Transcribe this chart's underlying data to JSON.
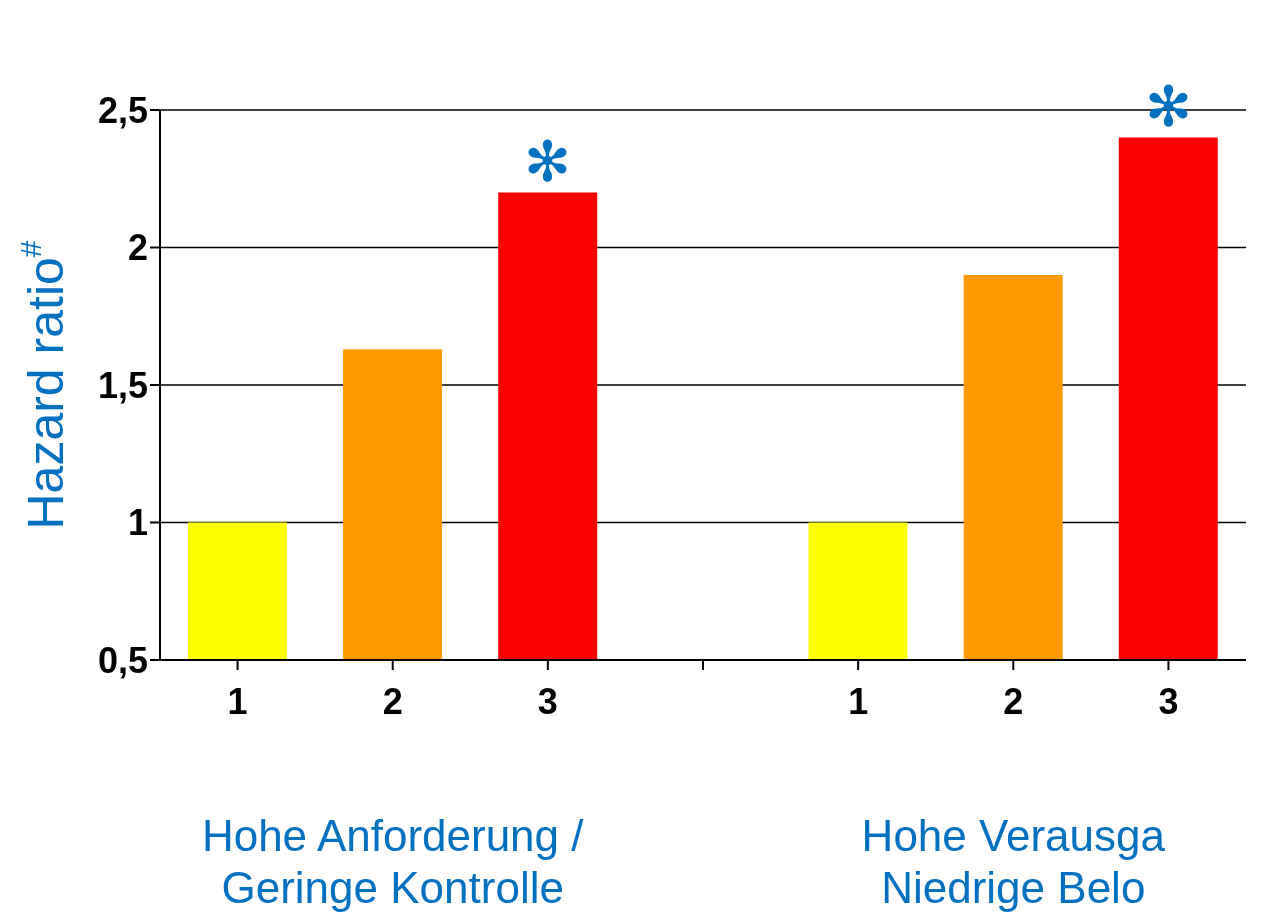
{
  "chart_data": {
    "type": "bar",
    "ylabel": "Hazard ratio$^{#}$",
    "categories": [
      "1",
      "2",
      "3",
      null,
      "1",
      "2",
      "3"
    ],
    "values": [
      1.0,
      1.63,
      2.2,
      null,
      1.0,
      1.9,
      2.4
    ],
    "colors": [
      "#ffff00",
      "#ff9900",
      "#ff0000",
      "#808080",
      "#ffff00",
      "#ff9900",
      "#ff0000"
    ],
    "value_labels": [
      null,
      null,
      "✻",
      null,
      null,
      null,
      "✻"
    ],
    "ylim": [
      0.5,
      2.5
    ],
    "yticks": [
      {
        "value": 0.5,
        "label": "0,5"
      },
      {
        "value": 1,
        "label": "1"
      },
      {
        "value": 1.5,
        "label": "1,5"
      },
      {
        "value": 2,
        "label": "2"
      },
      {
        "value": 2.5,
        "label": "2,5"
      }
    ],
    "grid": "y",
    "annotations": [
      "Hohe Anforderung /\nGeringe Kontrolle",
      "Hohe Verausga\nNiedrige Belo"
    ]
  }
}
